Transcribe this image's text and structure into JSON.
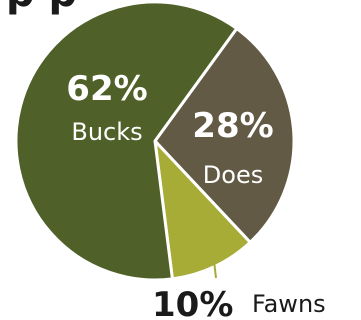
{
  "chart_data": {
    "type": "pie",
    "title": "",
    "slices": [
      {
        "label": "Bucks",
        "value": 62,
        "value_label": "62%",
        "color": "#4f6128"
      },
      {
        "label": "Does",
        "value": 28,
        "value_label": "28%",
        "color": "#625a45"
      },
      {
        "label": "Fawns",
        "value": 10,
        "value_label": "10%",
        "color": "#a6ac36"
      }
    ]
  },
  "header_fragment": "p p"
}
